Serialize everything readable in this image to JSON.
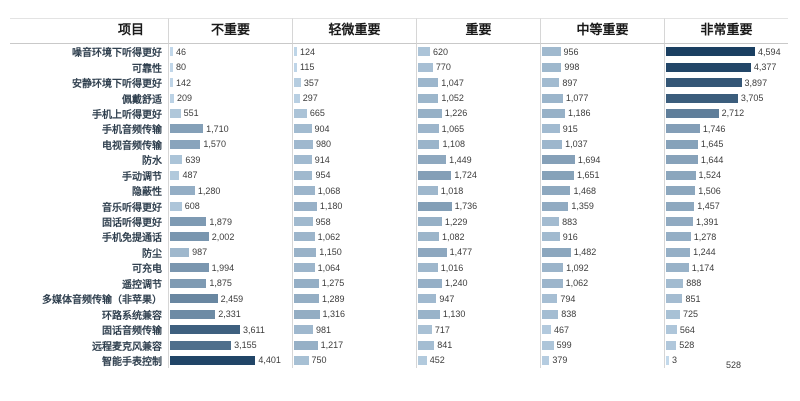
{
  "header": {
    "item_label": "项目"
  },
  "chart_data": {
    "type": "bar",
    "orientation": "horizontal",
    "title": "",
    "xlabel": "",
    "ylabel": "项目",
    "value_max": 4594,
    "grid": false,
    "legend_position": "none",
    "stray_label": "528",
    "colors": {
      "bar_min": "#c3d9eb",
      "bar_max": "#1a3f61"
    },
    "categories": [
      "噪音环境下听得更好",
      "可靠性",
      "安静环境下听得更好",
      "佩戴舒适",
      "手机上听得更好",
      "手机音频传输",
      "电视音频传输",
      "防水",
      "手动调节",
      "隐蔽性",
      "音乐听得更好",
      "固话听得更好",
      "手机免提通话",
      "防尘",
      "可充电",
      "遥控调节",
      "多媒体音频传输（非苹果）",
      "环路系统兼容",
      "固话音频传输",
      "远程麦克风兼容",
      "智能手表控制"
    ],
    "series": [
      {
        "name": "不重要",
        "values": [
          46,
          80,
          142,
          209,
          551,
          1710,
          1570,
          639,
          487,
          1280,
          608,
          1879,
          2002,
          987,
          1994,
          1875,
          2459,
          2331,
          3611,
          3155,
          4401
        ]
      },
      {
        "name": "轻微重要",
        "values": [
          124,
          115,
          357,
          297,
          665,
          904,
          980,
          914,
          954,
          1068,
          1180,
          958,
          1062,
          1150,
          1064,
          1275,
          1289,
          1316,
          981,
          1217,
          750
        ]
      },
      {
        "name": "重要",
        "values": [
          620,
          770,
          1047,
          1052,
          1226,
          1065,
          1108,
          1449,
          1724,
          1018,
          1736,
          1229,
          1082,
          1477,
          1016,
          1240,
          947,
          1130,
          717,
          841,
          452
        ]
      },
      {
        "name": "中等重要",
        "values": [
          956,
          998,
          897,
          1077,
          1186,
          915,
          1037,
          1694,
          1651,
          1468,
          1359,
          883,
          916,
          1482,
          1092,
          1062,
          794,
          838,
          467,
          599,
          379
        ]
      },
      {
        "name": "非常重要",
        "values": [
          4594,
          4377,
          3897,
          3705,
          2712,
          1746,
          1645,
          1644,
          1524,
          1506,
          1457,
          1391,
          1278,
          1244,
          1174,
          888,
          851,
          725,
          564,
          528,
          3
        ]
      }
    ]
  }
}
